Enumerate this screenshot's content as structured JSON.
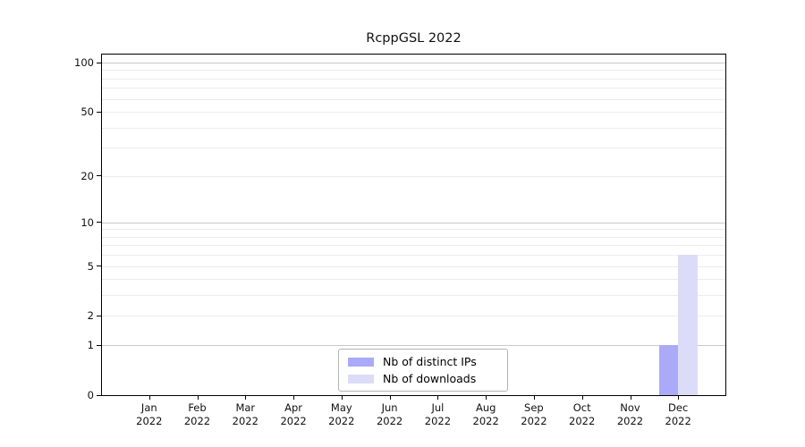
{
  "chart_data": {
    "type": "bar",
    "title": "RcppGSL 2022",
    "categories": [
      "Jan",
      "Feb",
      "Mar",
      "Apr",
      "May",
      "Jun",
      "Jul",
      "Aug",
      "Sep",
      "Oct",
      "Nov",
      "Dec"
    ],
    "year": "2022",
    "series": [
      {
        "name": "Nb of distinct IPs",
        "color": "#aaaaf8",
        "values": [
          0,
          0,
          0,
          0,
          0,
          0,
          0,
          0,
          0,
          0,
          0,
          1
        ]
      },
      {
        "name": "Nb of downloads",
        "color": "#dcdcf8",
        "values": [
          0,
          0,
          0,
          0,
          0,
          0,
          0,
          0,
          0,
          0,
          0,
          6
        ]
      }
    ],
    "y_scale": "log1p",
    "y_axis_ticks": [
      0,
      1,
      2,
      5,
      10,
      20,
      50,
      100
    ],
    "major_gridlines": [
      1,
      10,
      100
    ],
    "minor_gridlines": [
      2,
      3,
      4,
      5,
      6,
      7,
      8,
      9,
      20,
      30,
      40,
      50,
      60,
      70,
      80,
      90
    ],
    "ylim": [
      0,
      115
    ],
    "grid": true,
    "legend_position": "bottom-center",
    "colors": {
      "axis": "#000000",
      "major_grid": "#c9c9c9",
      "minor_grid": "#ececec",
      "legend_border": "#b3b3b3",
      "background": "#ffffff"
    }
  }
}
